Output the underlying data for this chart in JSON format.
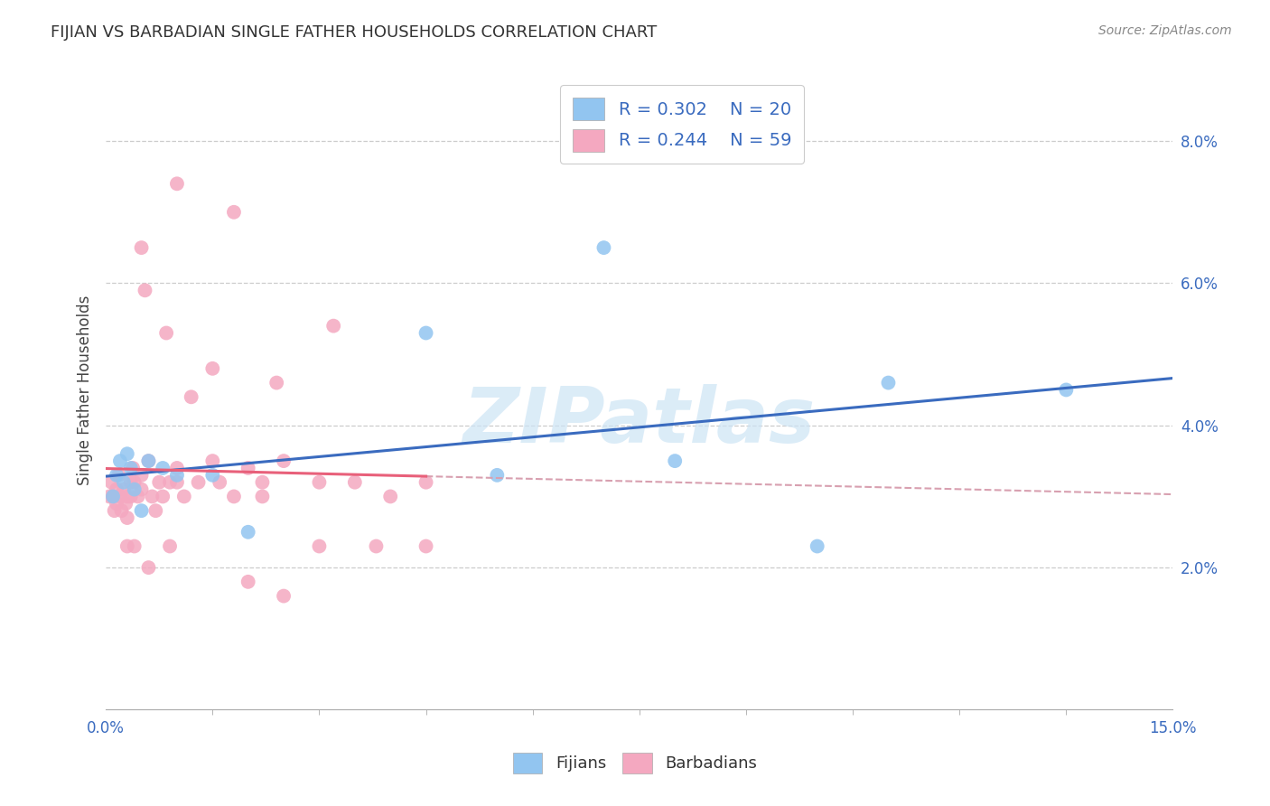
{
  "title": "FIJIAN VS BARBADIAN SINGLE FATHER HOUSEHOLDS CORRELATION CHART",
  "source": "Source: ZipAtlas.com",
  "ylabel": "Single Father Households",
  "xmin": 0.0,
  "xmax": 15.0,
  "ymin": 0.0,
  "ymax": 9.0,
  "ytick_vals": [
    2.0,
    4.0,
    6.0,
    8.0
  ],
  "fijian_color": "#92c5f0",
  "barbadian_color": "#f4a8c0",
  "fijian_line_color": "#3a6bbf",
  "barbadian_line_color": "#e8607a",
  "dashed_line_color": "#d8a0b0",
  "watermark_color": "#cce4f5",
  "legend_text_color": "#3a6bbf",
  "tick_color": "#3a6bbf",
  "fijian_x": [
    0.1,
    0.15,
    0.2,
    0.25,
    0.3,
    0.35,
    0.4,
    0.5,
    0.6,
    0.8,
    1.0,
    1.5,
    2.0,
    4.5,
    5.5,
    8.0,
    10.0,
    11.0,
    13.5,
    7.0
  ],
  "fijian_y": [
    3.0,
    3.3,
    3.5,
    3.2,
    3.6,
    3.4,
    3.1,
    2.8,
    3.5,
    3.4,
    3.3,
    3.3,
    2.5,
    5.3,
    3.3,
    3.5,
    2.3,
    4.6,
    4.5,
    6.5
  ],
  "barbadian_x": [
    0.05,
    0.08,
    0.1,
    0.12,
    0.15,
    0.15,
    0.18,
    0.2,
    0.22,
    0.25,
    0.28,
    0.3,
    0.3,
    0.35,
    0.35,
    0.38,
    0.4,
    0.45,
    0.5,
    0.5,
    0.55,
    0.6,
    0.65,
    0.7,
    0.75,
    0.8,
    0.85,
    0.9,
    1.0,
    1.0,
    1.1,
    1.2,
    1.3,
    1.5,
    1.5,
    1.6,
    1.8,
    2.0,
    2.2,
    2.2,
    2.4,
    2.5,
    3.0,
    3.2,
    3.5,
    4.0,
    4.5,
    1.0,
    1.8,
    0.5,
    0.6,
    2.0,
    2.5,
    3.0,
    3.8,
    4.5,
    0.9,
    0.4,
    0.3
  ],
  "barbadian_y": [
    3.0,
    3.2,
    3.0,
    2.8,
    3.1,
    2.9,
    3.3,
    3.0,
    2.8,
    3.1,
    2.9,
    3.0,
    2.7,
    3.2,
    3.0,
    3.4,
    3.2,
    3.0,
    3.3,
    3.1,
    5.9,
    3.5,
    3.0,
    2.8,
    3.2,
    3.0,
    5.3,
    3.2,
    3.4,
    3.2,
    3.0,
    4.4,
    3.2,
    3.5,
    4.8,
    3.2,
    3.0,
    3.4,
    3.2,
    3.0,
    4.6,
    3.5,
    3.2,
    5.4,
    3.2,
    3.0,
    3.2,
    7.4,
    7.0,
    6.5,
    2.0,
    1.8,
    1.6,
    2.3,
    2.3,
    2.3,
    2.3,
    2.3,
    2.3
  ]
}
